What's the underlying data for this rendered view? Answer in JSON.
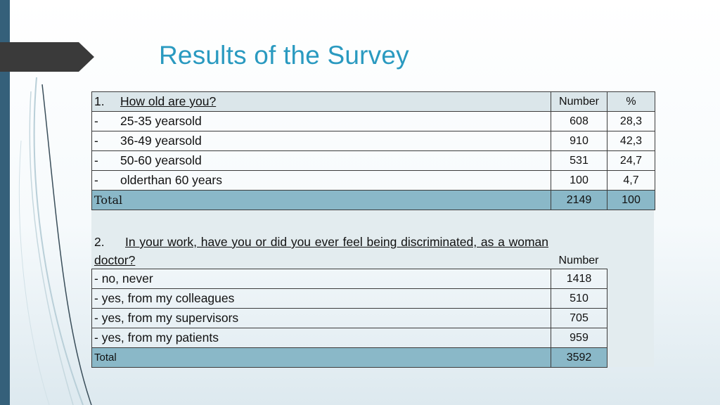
{
  "title": "Results of the Survey",
  "table1": {
    "question_number": "1.",
    "question": "How old are you?",
    "header_number": "Number",
    "header_percent": "%",
    "rows": [
      {
        "dash": "-",
        "label": "25-35 yearsold",
        "number": "608",
        "percent": "28,3"
      },
      {
        "dash": "-",
        "label": "36-49 yearsold",
        "number": "910",
        "percent": "42,3"
      },
      {
        "dash": "-",
        "label": "50-60 yearsold",
        "number": "531",
        "percent": "24,7"
      },
      {
        "dash": "-",
        "label": "olderthan 60 years",
        "number": "100",
        "percent": "4,7"
      }
    ],
    "total_label": "Total",
    "total_number": "2149",
    "total_percent": "100"
  },
  "table2": {
    "question_number": "2.",
    "question": "In your work, have you or did you ever feel being discriminated, as a woman doctor?",
    "header_number": "Number",
    "rows": [
      {
        "label": "- no, never",
        "number": "1418"
      },
      {
        "label": "- yes, from my colleagues",
        "number": "510"
      },
      {
        "label": "- yes, from my supervisors",
        "number": "705"
      },
      {
        "label": "- yes, from my patients",
        "number": "959"
      }
    ],
    "total_label": "Total",
    "total_number": "3592"
  }
}
